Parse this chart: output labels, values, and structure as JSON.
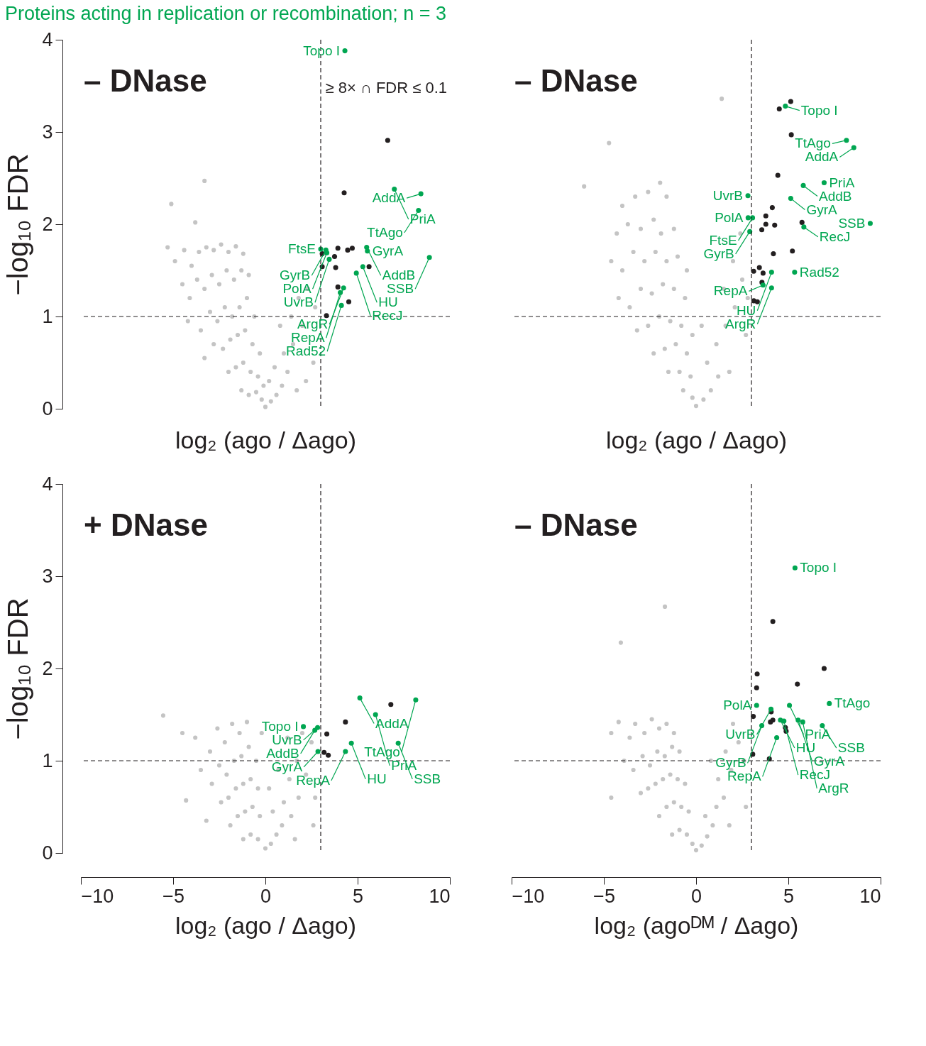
{
  "chart_data": [
    {
      "type": "scatter",
      "title": "Proteins acting in replication or recombination; n = 3",
      "ylabel": "−log₁₀ FDR",
      "xlabel": "log₂ (ago / Δago)",
      "xlim": [
        -10,
        10
      ],
      "ylim": [
        0,
        4
      ],
      "xticks": [
        -10,
        -5,
        0,
        5,
        10
      ],
      "yticks": [
        0,
        1,
        2,
        3,
        4
      ],
      "tick_labels": "y",
      "marker": "circle",
      "ref_lines": [
        {
          "axis": "x",
          "value": 3,
          "line_style": "dashed",
          "color": "#231f20"
        },
        {
          "axis": "y",
          "value": 1,
          "line_style": "dashed",
          "color": "#231f20"
        }
      ],
      "series": [
        {
          "color": "#c4c4c4",
          "x": [
            -5.1,
            -3.3,
            -3.8,
            -5.3,
            -4.9,
            -4.4,
            -4.0,
            -3.6,
            -3.2,
            -2.8,
            -2.4,
            -2.0,
            -1.6,
            -1.2,
            -4.5,
            -4.1,
            -3.7,
            -3.3,
            -2.9,
            -2.5,
            -2.1,
            -1.7,
            -1.3,
            -0.9,
            -4.2,
            -3.5,
            -3.0,
            -2.6,
            -2.2,
            -1.8,
            -1.4,
            -1.0,
            -0.6,
            -3.3,
            -2.8,
            -2.3,
            -1.9,
            -1.5,
            -1.1,
            -0.7,
            -0.3,
            -2.0,
            -1.6,
            -1.2,
            -0.8,
            -0.4,
            -1.3,
            -0.9,
            -0.5,
            -0.2,
            0,
            0.3,
            0.6,
            0.9,
            1.2,
            0.5,
            1.0,
            1.5,
            2.0,
            1.4,
            2.3,
            1.8,
            2.6,
            2.2,
            0.8,
            2.7,
            0.2,
            -0.1,
            1.7
          ],
          "values": [
            2.22,
            2.47,
            2.02,
            1.75,
            1.6,
            1.72,
            1.55,
            1.7,
            1.75,
            1.72,
            1.78,
            1.7,
            1.76,
            1.68,
            1.35,
            1.2,
            1.4,
            1.3,
            1.45,
            1.35,
            1.5,
            1.4,
            1.5,
            1.45,
            0.95,
            0.85,
            1.05,
            0.95,
            1.1,
            1.0,
            1.1,
            1.2,
            1.0,
            0.55,
            0.7,
            0.65,
            0.75,
            0.8,
            0.85,
            0.7,
            0.6,
            0.4,
            0.45,
            0.5,
            0.4,
            0.35,
            0.2,
            0.15,
            0.18,
            0.1,
            0.02,
            0.08,
            0.15,
            0.25,
            0.4,
            0.45,
            0.6,
            0.7,
            0.9,
            1.0,
            1.3,
            1.2,
            0.5,
            0.3,
            0.9,
            1.1,
            0.3,
            0.25,
            0.2
          ]
        },
        {
          "color": "#231f20",
          "x": [
            6.63,
            4.27,
            3.93,
            4.46,
            4.71,
            3.75,
            3.08,
            3.08,
            3.81,
            5.62,
            3.93,
            4.52,
            3.31
          ],
          "values": [
            2.91,
            2.34,
            1.74,
            1.72,
            1.74,
            1.65,
            1.68,
            1.54,
            1.53,
            1.54,
            1.32,
            1.16,
            1.01
          ]
        },
        {
          "color": "#00a651",
          "x": [
            4.31,
            6.99,
            8.43,
            8.3,
            3.28,
            3.0,
            3.33,
            3.46,
            5.49,
            5.53,
            5.28,
            4.93,
            8.89,
            4.24,
            4.06,
            4.12
          ],
          "values": [
            3.88,
            2.38,
            2.33,
            2.15,
            1.72,
            1.73,
            1.69,
            1.62,
            1.75,
            1.71,
            1.54,
            1.47,
            1.64,
            1.31,
            1.26,
            1.12
          ]
        }
      ],
      "annotations": [
        "– DNase",
        "≥ 8× ∩ FDR ≤ 0.1",
        {
          "text": "Topo I",
          "x": 4.31,
          "y": 3.88
        },
        {
          "text": "PriA",
          "x": 6.99,
          "y": 2.38
        },
        {
          "text": "AddA",
          "x": 8.43,
          "y": 2.33
        },
        {
          "text": "TtAgo",
          "x": 8.3,
          "y": 2.15
        },
        {
          "text": "GyrB",
          "x": 3.28,
          "y": 1.72
        },
        {
          "text": "FtsE",
          "x": 3.0,
          "y": 1.73
        },
        {
          "text": "PolA",
          "x": 3.33,
          "y": 1.69
        },
        {
          "text": "UvrB",
          "x": 3.46,
          "y": 1.62
        },
        {
          "text": "AddB",
          "x": 5.49,
          "y": 1.75
        },
        {
          "text": "GyrA",
          "x": 5.53,
          "y": 1.71
        },
        {
          "text": "HU",
          "x": 5.28,
          "y": 1.54
        },
        {
          "text": "RecJ",
          "x": 4.93,
          "y": 1.47
        },
        {
          "text": "SSB",
          "x": 8.89,
          "y": 1.64
        },
        {
          "text": "ArgR",
          "x": 4.24,
          "y": 1.31
        },
        {
          "text": "RepA",
          "x": 4.06,
          "y": 1.26
        },
        {
          "text": "Rad52",
          "x": 4.12,
          "y": 1.12
        }
      ]
    },
    {
      "type": "scatter",
      "xlabel": "log₂ (ago / Δago)",
      "xlim": [
        -10,
        10
      ],
      "ylim": [
        0,
        4
      ],
      "xticks": [
        -10,
        -5,
        0,
        5,
        10
      ],
      "yticks": [
        0,
        1,
        2,
        3,
        4
      ],
      "tick_labels": false,
      "marker": "circle",
      "ref_lines": [
        {
          "axis": "x",
          "value": 3,
          "line_style": "dashed",
          "color": "#231f20"
        },
        {
          "axis": "y",
          "value": 1,
          "line_style": "dashed",
          "color": "#231f20"
        }
      ],
      "series": [
        {
          "color": "#c4c4c4",
          "x": [
            1.39,
            -4.72,
            -6.07,
            -1.95,
            -4.0,
            -3.3,
            -2.6,
            -1.6,
            -4.3,
            -3.7,
            -3.0,
            -2.3,
            -1.9,
            -1.2,
            -4.6,
            -4.0,
            -3.4,
            -2.8,
            -2.2,
            -1.6,
            -1.0,
            -0.5,
            -4.2,
            -3.6,
            -3.0,
            -2.4,
            -1.8,
            -1.2,
            -0.6,
            -3.2,
            -2.6,
            -2.0,
            -1.4,
            -0.8,
            -0.2,
            -2.3,
            -1.7,
            -1.1,
            -0.5,
            -1.5,
            -0.9,
            -0.3,
            -0.7,
            -0.2,
            0,
            0.4,
            0.8,
            1.2,
            0.6,
            1.1,
            1.6,
            2.1,
            1.5,
            2.5,
            2.0,
            2.7,
            0.3,
            2.4,
            1.8,
            2.8
          ],
          "values": [
            3.36,
            2.88,
            2.41,
            2.45,
            2.2,
            2.3,
            2.35,
            2.3,
            1.9,
            2.0,
            1.95,
            2.05,
            1.9,
            1.95,
            1.6,
            1.5,
            1.7,
            1.6,
            1.7,
            1.6,
            1.65,
            1.5,
            1.2,
            1.1,
            1.3,
            1.25,
            1.35,
            1.3,
            1.2,
            0.85,
            0.9,
            1.0,
            0.95,
            0.9,
            0.8,
            0.6,
            0.65,
            0.7,
            0.6,
            0.4,
            0.4,
            0.35,
            0.2,
            0.12,
            0.03,
            0.1,
            0.2,
            0.35,
            0.5,
            0.7,
            0.9,
            1.1,
            1.3,
            1.4,
            1.6,
            0.8,
            0.9,
            1.9,
            0.4,
            1.2
          ]
        },
        {
          "color": "#231f20",
          "x": [
            5.13,
            4.51,
            5.16,
            4.43,
            4.13,
            3.78,
            3.78,
            4.26,
            3.56,
            5.74,
            4.19,
            5.22,
            3.12,
            3.43,
            3.63,
            3.57,
            3.13,
            3.32
          ],
          "values": [
            3.33,
            3.25,
            2.97,
            2.53,
            2.18,
            2.09,
            2.0,
            1.99,
            1.94,
            2.02,
            1.68,
            1.71,
            1.49,
            1.53,
            1.47,
            1.37,
            1.17,
            1.16
          ]
        },
        {
          "color": "#00a651",
          "x": [
            4.84,
            8.15,
            8.55,
            5.81,
            6.94,
            5.13,
            2.81,
            2.82,
            3.06,
            2.91,
            5.84,
            9.44,
            4.09,
            5.34,
            4.09,
            3.63
          ],
          "values": [
            3.28,
            2.91,
            2.83,
            2.42,
            2.45,
            2.28,
            2.31,
            2.07,
            2.07,
            1.92,
            1.97,
            2.01,
            1.48,
            1.48,
            1.31,
            1.34
          ]
        }
      ],
      "annotations": [
        "– DNase",
        {
          "text": "Topo I",
          "x": 4.84,
          "y": 3.28
        },
        {
          "text": "TtAgo",
          "x": 8.15,
          "y": 2.91
        },
        {
          "text": "AddA",
          "x": 8.55,
          "y": 2.83
        },
        {
          "text": "AddB",
          "x": 5.81,
          "y": 2.42
        },
        {
          "text": "PriA",
          "x": 6.94,
          "y": 2.45
        },
        {
          "text": "GyrA",
          "x": 5.13,
          "y": 2.28
        },
        {
          "text": "UvrB",
          "x": 2.81,
          "y": 2.31
        },
        {
          "text": "PolA",
          "x": 2.82,
          "y": 2.07
        },
        {
          "text": "FtsE",
          "x": 3.06,
          "y": 2.07
        },
        {
          "text": "GyrB",
          "x": 2.91,
          "y": 1.92
        },
        {
          "text": "RecJ",
          "x": 5.84,
          "y": 1.97
        },
        {
          "text": "SSB",
          "x": 9.44,
          "y": 2.01
        },
        {
          "text": "HU",
          "x": 4.09,
          "y": 1.48
        },
        {
          "text": "Rad52",
          "x": 5.34,
          "y": 1.48
        },
        {
          "text": "ArgR",
          "x": 4.09,
          "y": 1.31
        },
        {
          "text": "RepA",
          "x": 3.63,
          "y": 1.34
        }
      ]
    },
    {
      "type": "scatter",
      "ylabel": "−log₁₀ FDR",
      "xlabel": "log₂ (ago / Δago)",
      "xlim": [
        -10,
        10
      ],
      "ylim": [
        0,
        4
      ],
      "xticks": [
        -10,
        -5,
        0,
        5,
        10
      ],
      "yticks": [
        0,
        1,
        2,
        3,
        4
      ],
      "marker": "circle",
      "ref_lines": [
        {
          "axis": "x",
          "value": 3,
          "line_style": "dashed",
          "color": "#231f20"
        },
        {
          "axis": "y",
          "value": 1,
          "line_style": "dashed",
          "color": "#231f20"
        }
      ],
      "series": [
        {
          "color": "#c4c4c4",
          "x": [
            -5.54,
            -4.3,
            -4.5,
            -3.8,
            -3.5,
            -3.0,
            -2.6,
            -2.2,
            -1.8,
            -1.4,
            -1.0,
            -2.9,
            -2.5,
            -2.1,
            -1.7,
            -1.3,
            -0.9,
            -0.5,
            -2.4,
            -2.0,
            -1.6,
            -1.2,
            -0.8,
            -0.4,
            -1.9,
            -1.5,
            -1.1,
            -0.7,
            -0.3,
            -1.2,
            -0.8,
            -0.4,
            0,
            0.3,
            0.6,
            0.9,
            0.4,
            1.0,
            1.4,
            1.8,
            1.3,
            2.2,
            1.7,
            2.5,
            2.0,
            0.7,
            1.2,
            -3.2,
            2.6,
            0.2,
            -0.2,
            1.6,
            2.7
          ],
          "values": [
            1.49,
            0.57,
            1.3,
            1.25,
            0.9,
            1.1,
            1.35,
            1.2,
            1.4,
            1.3,
            1.42,
            0.75,
            0.95,
            0.85,
            1.0,
            1.05,
            1.15,
            1.0,
            0.55,
            0.6,
            0.7,
            0.75,
            0.8,
            0.7,
            0.3,
            0.4,
            0.45,
            0.5,
            0.4,
            0.15,
            0.2,
            0.15,
            0.05,
            0.1,
            0.2,
            0.3,
            0.45,
            0.55,
            0.4,
            0.6,
            0.8,
            0.85,
            1.0,
            1.2,
            1.3,
            0.9,
            1.25,
            0.35,
            0.3,
            0.7,
            1.3,
            0.15,
            0.6
          ]
        },
        {
          "color": "#231f20",
          "x": [
            6.8,
            4.34,
            3.33,
            3.18,
            3.41
          ],
          "values": [
            1.61,
            1.42,
            1.29,
            1.09,
            1.06
          ]
        },
        {
          "color": "#00a651",
          "x": [
            5.12,
            8.15,
            5.97,
            2.06,
            2.83,
            2.68,
            4.66,
            7.2,
            2.85,
            4.34
          ],
          "values": [
            1.68,
            1.66,
            1.5,
            1.37,
            1.36,
            1.33,
            1.19,
            1.19,
            1.1,
            1.1
          ]
        }
      ],
      "annotations": [
        "+ DNase",
        {
          "text": "AddA",
          "x": 5.12,
          "y": 1.68
        },
        {
          "text": "TtAgo",
          "x": 8.15,
          "y": 1.66
        },
        {
          "text": "PriA",
          "x": 5.97,
          "y": 1.5
        },
        {
          "text": "Topo I",
          "x": 2.06,
          "y": 1.37
        },
        {
          "text": "UvrB",
          "x": 2.83,
          "y": 1.36
        },
        {
          "text": "AddB",
          "x": 2.68,
          "y": 1.33
        },
        {
          "text": "HU",
          "x": 4.66,
          "y": 1.19
        },
        {
          "text": "SSB",
          "x": 7.2,
          "y": 1.19
        },
        {
          "text": "GyrA",
          "x": 2.85,
          "y": 1.1
        },
        {
          "text": "RepA",
          "x": 4.34,
          "y": 1.1
        }
      ]
    },
    {
      "type": "scatter",
      "xlabel": "log₂ (agoᴰᴹ / Δago)",
      "xlim": [
        -10,
        10
      ],
      "ylim": [
        0,
        4
      ],
      "xticks": [
        -10,
        -5,
        0,
        5,
        10
      ],
      "yticks": [
        0,
        1,
        2,
        3,
        4
      ],
      "tick_labels": "x",
      "marker": "circle",
      "ref_lines": [
        {
          "axis": "x",
          "value": 3,
          "line_style": "dashed",
          "color": "#231f20"
        },
        {
          "axis": "y",
          "value": 1,
          "line_style": "dashed",
          "color": "#231f20"
        }
      ],
      "series": [
        {
          "color": "#c4c4c4",
          "x": [
            -1.69,
            -4.08,
            -4.6,
            -4.2,
            -3.6,
            -3.3,
            -2.8,
            -2.4,
            -2.0,
            -1.6,
            -1.2,
            -3.9,
            -3.4,
            -2.9,
            -2.5,
            -2.1,
            -1.7,
            -1.3,
            -0.9,
            -3.0,
            -2.6,
            -2.2,
            -1.8,
            -1.4,
            -1.0,
            -0.6,
            -2.0,
            -1.6,
            -1.2,
            -0.8,
            -0.4,
            -1.3,
            -0.9,
            -0.5,
            -0.2,
            0,
            0.3,
            0.6,
            0.9,
            0.5,
            1.1,
            1.5,
            1.2,
            1.9,
            1.6,
            2.3,
            2.0,
            2.6,
            0.8,
            1.8,
            2.7,
            -4.6
          ],
          "values": [
            2.67,
            2.28,
            1.3,
            1.42,
            1.25,
            1.4,
            1.3,
            1.45,
            1.35,
            1.4,
            1.3,
            1.0,
            0.9,
            1.05,
            0.95,
            1.1,
            1.05,
            1.15,
            1.1,
            0.65,
            0.7,
            0.75,
            0.8,
            0.85,
            0.8,
            0.75,
            0.4,
            0.5,
            0.55,
            0.5,
            0.45,
            0.2,
            0.25,
            0.2,
            0.1,
            0.03,
            0.08,
            0.18,
            0.3,
            0.4,
            0.5,
            0.6,
            0.8,
            0.9,
            1.1,
            1.2,
            1.4,
            1.0,
            1.0,
            0.3,
            0.5,
            0.6
          ]
        },
        {
          "color": "#231f20",
          "x": [
            4.16,
            6.94,
            3.31,
            3.28,
            5.49,
            4.07,
            3.1,
            4.03,
            4.16,
            4.84,
            4.88,
            3.07,
            3.97
          ],
          "values": [
            2.51,
            2.0,
            1.94,
            1.79,
            1.83,
            1.53,
            1.48,
            1.42,
            1.44,
            1.36,
            1.32,
            1.07,
            1.02
          ]
        },
        {
          "color": "#00a651",
          "x": [
            5.36,
            7.22,
            4.06,
            3.28,
            5.06,
            3.56,
            4.57,
            4.76,
            5.53,
            5.78,
            6.84,
            4.37
          ],
          "values": [
            3.09,
            1.62,
            1.56,
            1.6,
            1.6,
            1.38,
            1.44,
            1.43,
            1.44,
            1.42,
            1.38,
            1.25
          ]
        }
      ],
      "annotations": [
        "– DNase",
        {
          "text": "Topo I",
          "x": 5.36,
          "y": 3.09
        },
        {
          "text": "TtAgo",
          "x": 7.22,
          "y": 1.62
        },
        {
          "text": "UvrB",
          "x": 4.06,
          "y": 1.56
        },
        {
          "text": "PolA",
          "x": 3.28,
          "y": 1.6
        },
        {
          "text": "PriA",
          "x": 5.06,
          "y": 1.6
        },
        {
          "text": "GyrB",
          "x": 3.56,
          "y": 1.38
        },
        {
          "text": "HU",
          "x": 4.57,
          "y": 1.44
        },
        {
          "text": "RecJ",
          "x": 4.76,
          "y": 1.43
        },
        {
          "text": "GyrA",
          "x": 5.53,
          "y": 1.44
        },
        {
          "text": "ArgR",
          "x": 5.78,
          "y": 1.42
        },
        {
          "text": "SSB",
          "x": 6.84,
          "y": 1.38
        },
        {
          "text": "RepA",
          "x": 4.37,
          "y": 1.25
        }
      ]
    }
  ]
}
